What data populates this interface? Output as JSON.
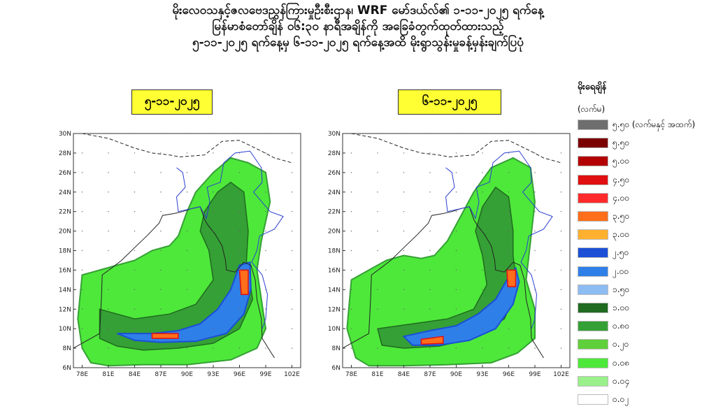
{
  "title_lines": [
    "မိုးလေဝသနှင့်ဇလဗေဒညွှန်ကြားမှုဦးစီးဌာန၊ WRF မော်ဒယ်လ်၏ ၁-၁၁-၂၀၂၅ ရက်နေ့",
    "မြန်မာစံတော်ချိန် ၀၆:၃၀ နာရီအချိန်ကို အခြေခံတွက်ထုတ်ထားသည့်",
    "၅-၁၁-၂၀၂၅ ရက်နေ့မှ ၆-၁၁-၂၀၂၅ ရက်နေ့အထိ မိုးရွာသွန်းမှုခန့်မှန်းချက်ပြပုံ"
  ],
  "panels": [
    {
      "date": "၅-၁၁-၂၀၂၅"
    },
    {
      "date": "၆-၁၁-၂၀၂၅"
    }
  ],
  "axes": {
    "lat_labels": [
      "30N",
      "28N",
      "26N",
      "24N",
      "22N",
      "20N",
      "18N",
      "16N",
      "14N",
      "12N",
      "10N",
      "8N",
      "6N"
    ],
    "lon_labels": [
      "78E",
      "81E",
      "84E",
      "87E",
      "90E",
      "93E",
      "96E",
      "99E",
      "102E"
    ]
  },
  "legend": {
    "title": "မိုးရေချိန်",
    "unit": "(လက်မ)",
    "items": [
      {
        "label": "၅.၅၀ (လက်မနှင့် အထက်)",
        "color": "#6e6e6e"
      },
      {
        "label": "၅.၅၀",
        "color": "#7b0000"
      },
      {
        "label": "၅.၀၀",
        "color": "#b30000"
      },
      {
        "label": "၄.၅၀",
        "color": "#e01010"
      },
      {
        "label": "၄.၀၀",
        "color": "#ff2a2a"
      },
      {
        "label": "၃.၅၀",
        "color": "#ff6e1a"
      },
      {
        "label": "၃.၀၀",
        "color": "#ffb02e"
      },
      {
        "label": "၂.၅၀",
        "color": "#1a4fd6"
      },
      {
        "label": "၂.၀၀",
        "color": "#2f7fe8"
      },
      {
        "label": "၁.၅၀",
        "color": "#8cbcf2"
      },
      {
        "label": "၁.၀၀",
        "color": "#1f6b1f"
      },
      {
        "label": "၀.၈၀",
        "color": "#35a035"
      },
      {
        "label": "၀.၂၀",
        "color": "#5fcf3a"
      },
      {
        "label": "၀.၀၈",
        "color": "#4ee83a"
      },
      {
        "label": "၀.၀၄",
        "color": "#9af08a"
      },
      {
        "label": "၀.၀၂",
        "color": "#ffffff"
      }
    ]
  }
}
